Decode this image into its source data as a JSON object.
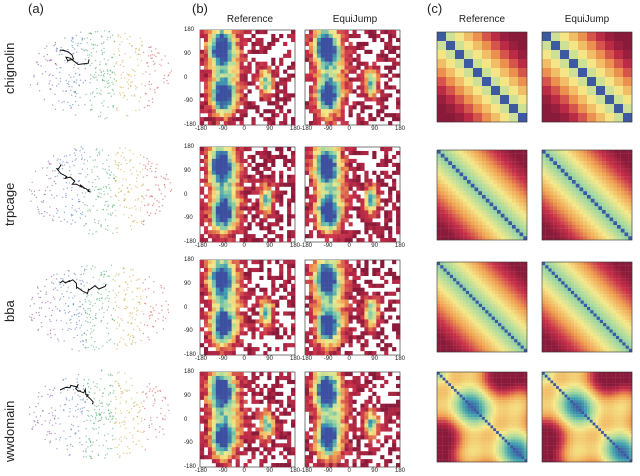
{
  "panel_labels": {
    "a": "(a)",
    "b": "(b)",
    "c": "(c)"
  },
  "column_titles": {
    "b_left": "Reference",
    "b_right": "EquiJump",
    "c_left": "Reference",
    "c_right": "EquiJump"
  },
  "row_labels": [
    "chignolin",
    "trpcage",
    "bba",
    "wwdomain"
  ],
  "ramachandran_ticks": {
    "x": [
      "-180",
      "-90",
      "0",
      "90",
      "180"
    ],
    "y": [
      "180",
      "90",
      "0",
      "-90",
      "-180"
    ]
  },
  "colors": {
    "structure_palette": [
      "#7f3f98",
      "#3f6fb5",
      "#3aa060",
      "#c8a030",
      "#d04040"
    ],
    "density_palette": [
      "#3d4fa0",
      "#3e9fb0",
      "#9fd8a0",
      "#f5e98a",
      "#f0a050",
      "#c9304a",
      "#8a1a3a"
    ],
    "background": "#ffffff"
  }
}
